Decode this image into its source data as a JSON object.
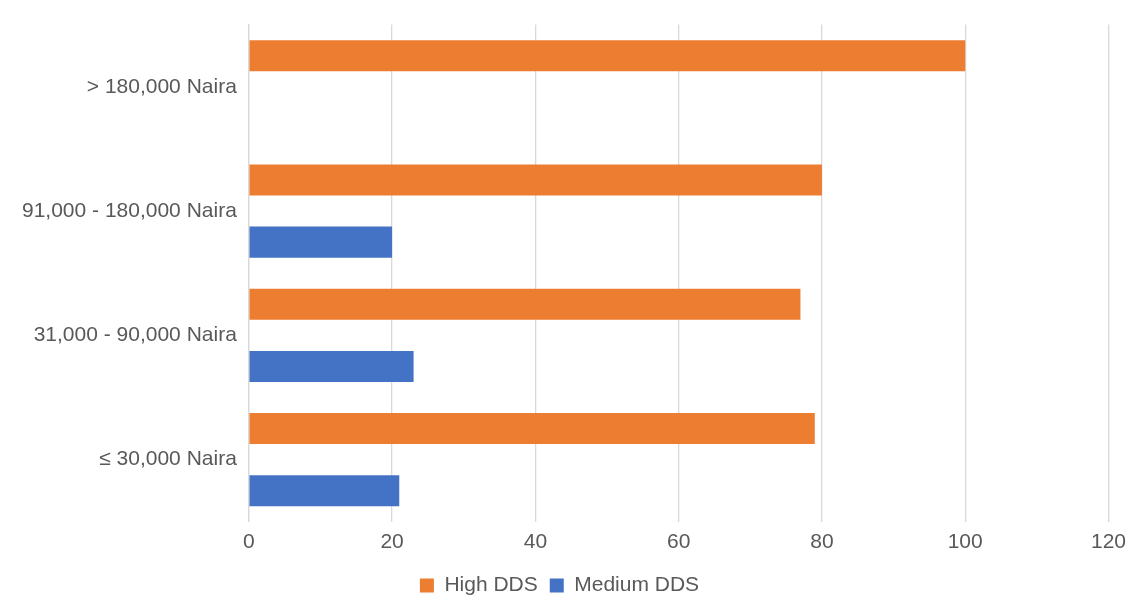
{
  "chart_data": {
    "type": "bar",
    "orientation": "horizontal",
    "categories": [
      "> 180,000 Naira",
      "91,000 - 180,000 Naira",
      "31,000 - 90,000 Naira",
      "≤ 30,000 Naira"
    ],
    "series": [
      {
        "name": "High DDS",
        "color": "#ed7d31",
        "values": [
          100,
          80,
          77,
          79
        ]
      },
      {
        "name": "Medium DDS",
        "color": "#4472c4",
        "values": [
          0,
          20,
          23,
          21
        ]
      }
    ],
    "xlim": [
      0,
      120
    ],
    "xticks": [
      0,
      20,
      40,
      60,
      80,
      100,
      120
    ],
    "grid": "x",
    "legend": "bottom"
  }
}
